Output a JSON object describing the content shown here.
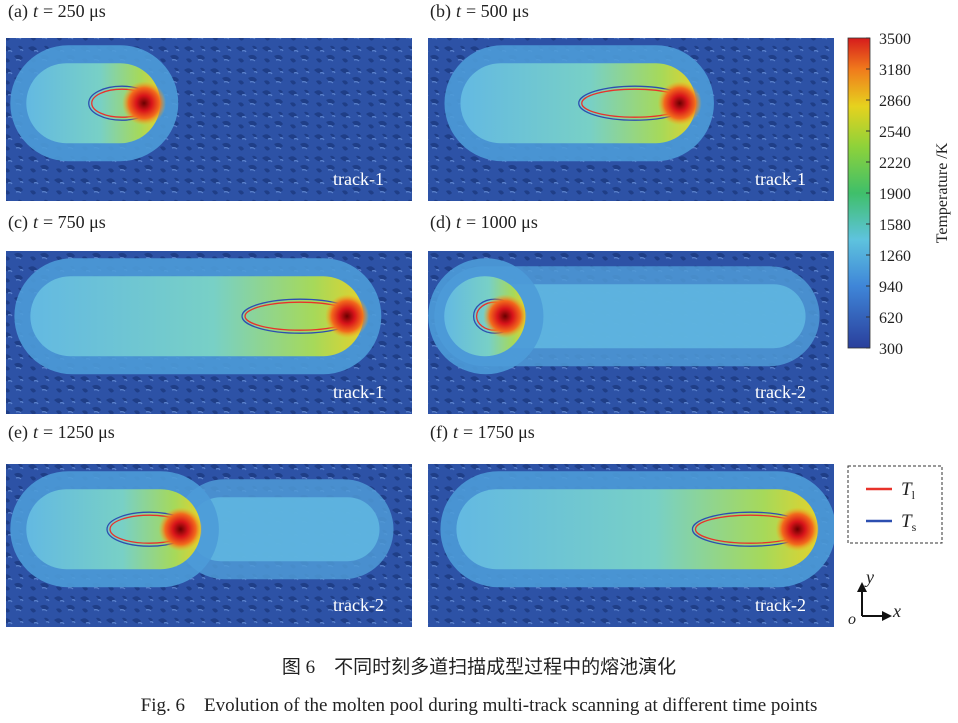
{
  "panels": [
    {
      "label": "(a)",
      "var": "t",
      "time": "= 250 μs",
      "track": "track-1"
    },
    {
      "label": "(b)",
      "var": "t",
      "time": "= 500 μs",
      "track": "track-1"
    },
    {
      "label": "(c)",
      "var": "t",
      "time": "= 750 μs",
      "track": "track-1"
    },
    {
      "label": "(d)",
      "var": "t",
      "time": "= 1000 μs",
      "track": "track-2"
    },
    {
      "label": "(e)",
      "var": "t",
      "time": "= 1250 μs",
      "track": "track-2"
    },
    {
      "label": "(f)",
      "var": "t",
      "time": "= 1750 μs",
      "track": "track-2"
    }
  ],
  "colorbar": {
    "title": "Temperature /K",
    "range": [
      300,
      3500
    ],
    "ticks": [
      3500,
      3180,
      2860,
      2540,
      2220,
      1900,
      1580,
      1260,
      940,
      620,
      300
    ]
  },
  "legend": [
    {
      "symbol": "T",
      "subscript": "l",
      "color": "#e8322a"
    },
    {
      "symbol": "T",
      "subscript": "s",
      "color": "#2c4fb0"
    }
  ],
  "axes_indicator": {
    "y": "y",
    "origin": "o",
    "x": "x"
  },
  "caption": {
    "zh": "图 6　不同时刻多道扫描成型过程中的熔池演化",
    "en": "Fig. 6　Evolution of the molten pool during multi-track scanning at different time points"
  }
}
